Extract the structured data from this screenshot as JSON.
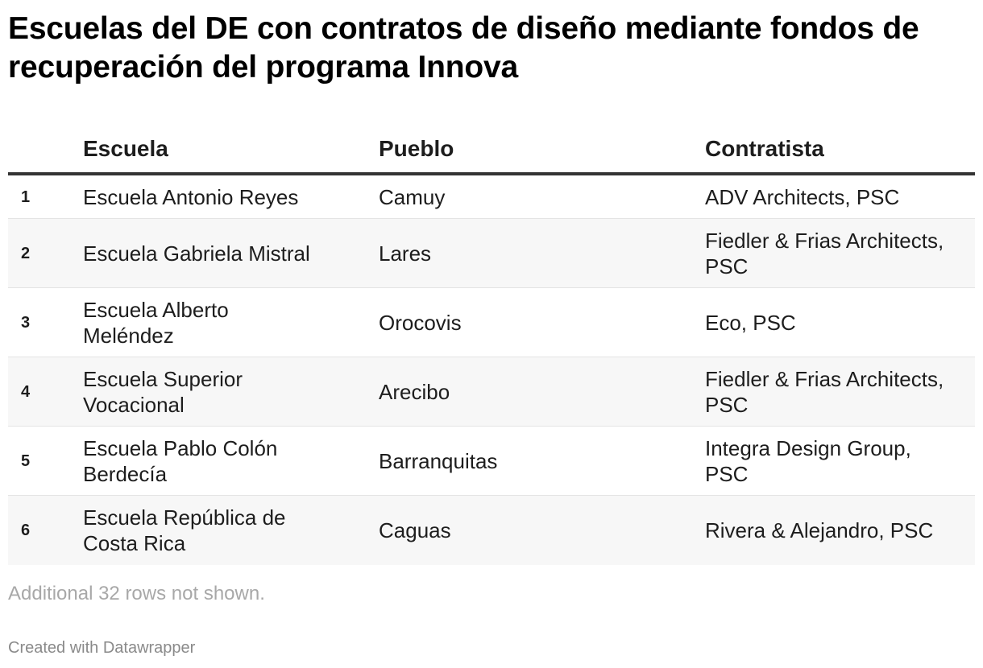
{
  "title": "Escuelas del DE con contratos de diseño mediante fondos de recuperación del programa Innova",
  "table": {
    "headers": {
      "index": "",
      "escuela": "Escuela",
      "pueblo": "Pueblo",
      "contratista": "Contratista"
    },
    "rows": [
      {
        "index": "1",
        "escuela": "Escuela Antonio Reyes",
        "pueblo": "Camuy",
        "contratista": "ADV Architects, PSC"
      },
      {
        "index": "2",
        "escuela": "Escuela Gabriela Mistral",
        "pueblo": "Lares",
        "contratista": "Fiedler & Frias Architects, PSC"
      },
      {
        "index": "3",
        "escuela": "Escuela Alberto Meléndez",
        "pueblo": "Orocovis",
        "contratista": "Eco, PSC"
      },
      {
        "index": "4",
        "escuela": "Escuela Superior Vocacional",
        "pueblo": "Arecibo",
        "contratista": "Fiedler & Frias Architects, PSC"
      },
      {
        "index": "5",
        "escuela": "Escuela Pablo Colón Berdecía",
        "pueblo": "Barranquitas",
        "contratista": "Integra Design Group, PSC"
      },
      {
        "index": "6",
        "escuela": "Escuela República de Costa Rica",
        "pueblo": "Caguas",
        "contratista": "Rivera & Alejandro, PSC"
      }
    ]
  },
  "footer": {
    "note": "Additional 32 rows not shown.",
    "credit": "Created with Datawrapper"
  }
}
